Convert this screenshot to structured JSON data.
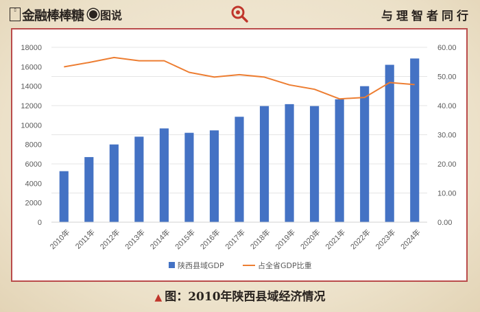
{
  "header": {
    "logo_seal": "金融",
    "logo_text": "金融棒棒糖",
    "logo_sub": "图说",
    "slogan": "与理智者同行"
  },
  "footer": {
    "caption": "图：2010年陕西县域经济情况"
  },
  "colors": {
    "bar": "#4472c4",
    "line": "#ed7d31",
    "frame": "#b94a4a",
    "accent": "#c0352b"
  },
  "chart_data": {
    "type": "bar",
    "categories": [
      "2010年",
      "2011年",
      "2012年",
      "2013年",
      "2014年",
      "2015年",
      "2016年",
      "2017年",
      "2018年",
      "2019年",
      "2020年",
      "2021年",
      "2022年",
      "2023年",
      "2024年"
    ],
    "series": [
      {
        "name": "陕西县域GDP",
        "type": "bar",
        "axis": "left",
        "values": [
          5250,
          6700,
          8000,
          8800,
          9650,
          9200,
          9450,
          10850,
          11950,
          12150,
          11950,
          12650,
          14000,
          16200,
          16850
        ]
      },
      {
        "name": "占全省GDP比重",
        "type": "line",
        "axis": "right",
        "values": [
          53.3,
          54.8,
          56.5,
          55.4,
          55.4,
          51.4,
          49.8,
          50.6,
          49.8,
          47.1,
          45.6,
          42.3,
          42.8,
          47.9,
          47.2
        ]
      }
    ],
    "y_left": {
      "min": 0,
      "max": 18000,
      "step": 2000,
      "ticks": [
        "0",
        "2000",
        "4000",
        "6000",
        "8000",
        "10000",
        "12000",
        "14000",
        "16000",
        "18000"
      ]
    },
    "y_right": {
      "min": 0,
      "max": 60,
      "step": 10,
      "ticks": [
        "0.00",
        "10.00",
        "20.00",
        "30.00",
        "40.00",
        "50.00",
        "60.00"
      ]
    },
    "grid": true,
    "legend": "bottom",
    "title": "",
    "xlabel": "",
    "ylabel": ""
  }
}
